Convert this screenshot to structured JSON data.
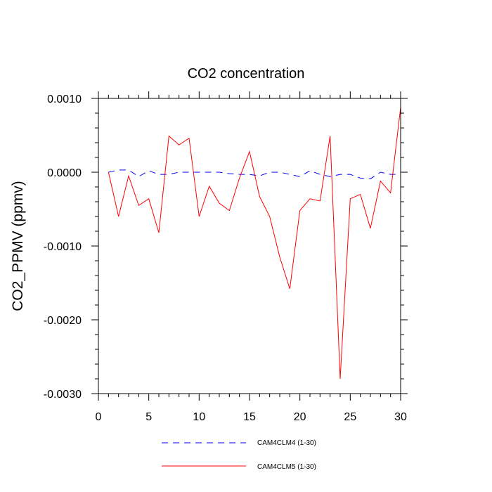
{
  "chart_data": {
    "type": "line",
    "title": "CO2 concentration",
    "xlabel": "",
    "ylabel": "CO2_PPMV  (ppmv)",
    "xlim": [
      0,
      30
    ],
    "ylim": [
      -0.003,
      0.001
    ],
    "x_ticks": [
      0,
      5,
      10,
      15,
      20,
      25,
      30
    ],
    "x_tick_labels": [
      "0",
      "5",
      "10",
      "15",
      "20",
      "25",
      "30"
    ],
    "y_ticks": [
      0.001,
      0.0,
      -0.001,
      -0.002,
      -0.003
    ],
    "y_tick_labels": [
      "0.0010",
      "0.0000",
      "-0.0010",
      "-0.0020",
      "-0.0030"
    ],
    "grid": false,
    "legend_position": "bottom",
    "series": [
      {
        "name": "CAM4CLM4 (1-30)",
        "color": "#0000ff",
        "style": "dashed",
        "x": [
          1,
          2,
          3,
          4,
          5,
          6,
          7,
          8,
          9,
          10,
          11,
          12,
          13,
          14,
          15,
          16,
          17,
          18,
          19,
          20,
          21,
          22,
          23,
          24,
          25,
          26,
          27,
          28,
          29,
          30
        ],
        "values": [
          0.0,
          3e-05,
          3e-05,
          -6e-05,
          2e-05,
          -3e-05,
          -3e-05,
          0.0,
          0.0,
          0.0,
          0.0,
          0.0,
          -2e-05,
          -3e-05,
          -3e-05,
          -5e-05,
          0.0,
          0.0,
          -3e-05,
          -6e-05,
          2e-05,
          -3e-05,
          -6e-05,
          -3e-05,
          -3e-05,
          -8e-05,
          -9e-05,
          0.0,
          -3e-05,
          -3e-05
        ]
      },
      {
        "name": "CAM4CLM5 (1-30)",
        "color": "#ff0000",
        "style": "solid",
        "x": [
          1,
          2,
          3,
          4,
          5,
          6,
          7,
          8,
          9,
          10,
          11,
          12,
          13,
          14,
          15,
          16,
          17,
          18,
          19,
          20,
          21,
          22,
          23,
          24,
          25,
          26,
          27,
          28,
          29,
          30
        ],
        "values": [
          0.0,
          -0.0006,
          -5e-05,
          -0.00045,
          -0.00036,
          -0.00082,
          0.00049,
          0.00037,
          0.00046,
          -0.0006,
          -0.00019,
          -0.00042,
          -0.00052,
          -8e-05,
          0.00028,
          -0.00033,
          -0.0006,
          -0.00115,
          -0.00158,
          -0.00052,
          -0.00036,
          -0.00039,
          0.00049,
          -0.0028,
          -0.00036,
          -0.0003,
          -0.00076,
          -0.00012,
          -0.00028,
          0.00088
        ]
      }
    ]
  }
}
